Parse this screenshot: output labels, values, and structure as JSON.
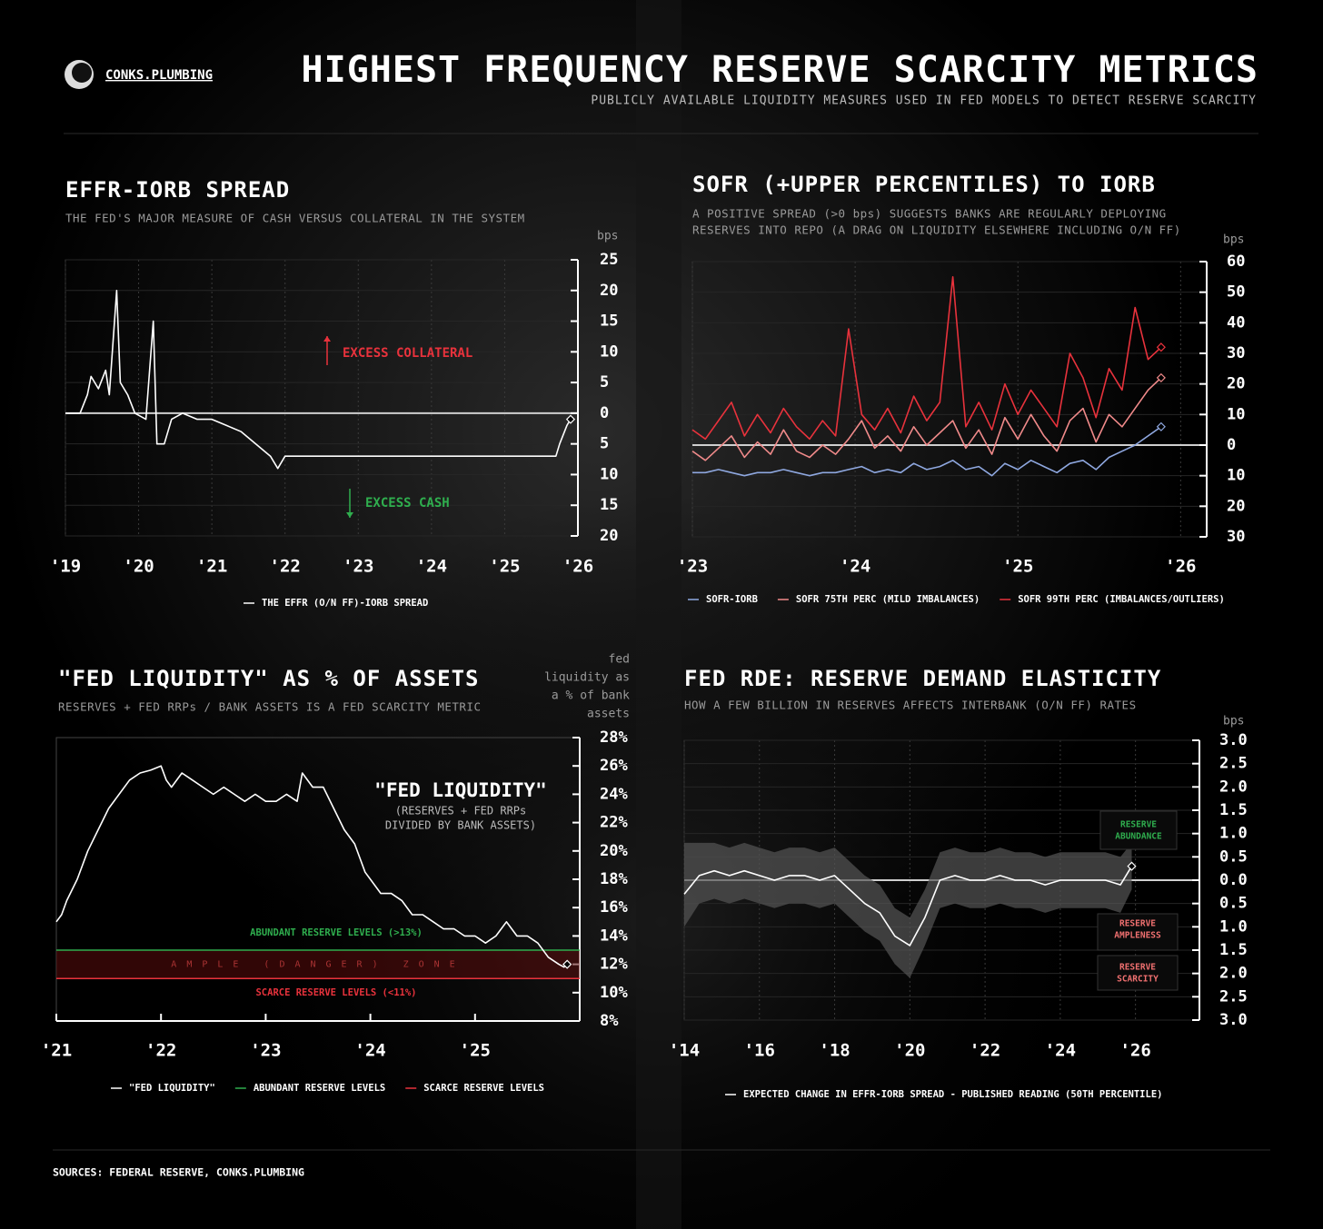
{
  "header": {
    "brand": "CONKS.PLUMBING",
    "title": "HIGHEST FREQUENCY RESERVE SCARCITY METRICS",
    "subtitle": "PUBLICLY AVAILABLE LIQUIDITY MEASURES USED IN FED MODELS TO DETECT RESERVE SCARCITY"
  },
  "chart_data": [
    {
      "type": "line",
      "title": "EFFR-IORB SPREAD",
      "subtitle": [
        "THE FED'S MAJOR MEASURE OF CASH VERSUS COLLATERAL IN THE SYSTEM"
      ],
      "y_label": [
        "bps"
      ],
      "x": [
        2019.0,
        2019.2,
        2019.3,
        2019.35,
        2019.45,
        2019.55,
        2019.6,
        2019.7,
        2019.75,
        2019.85,
        2019.95,
        2020.1,
        2020.2,
        2020.25,
        2020.35,
        2020.45,
        2020.6,
        2020.8,
        2021.0,
        2021.2,
        2021.4,
        2021.6,
        2021.8,
        2021.9,
        2022.0,
        2022.5,
        2023.0,
        2023.5,
        2024.0,
        2024.5,
        2025.0,
        2025.5,
        2025.7,
        2025.75,
        2025.85,
        2025.9
      ],
      "xlim": [
        2019,
        2026
      ],
      "xticks": [
        {
          "value": 2019,
          "label": "'19"
        },
        {
          "value": 2020,
          "label": "'20"
        },
        {
          "value": 2021,
          "label": "'21"
        },
        {
          "value": 2022,
          "label": "'22"
        },
        {
          "value": 2023,
          "label": "'23"
        },
        {
          "value": 2024,
          "label": "'24"
        },
        {
          "value": 2025,
          "label": "'25"
        },
        {
          "value": 2026,
          "label": "'26"
        }
      ],
      "ylim": [
        -20,
        25
      ],
      "yticks": [
        25,
        20,
        15,
        10,
        5,
        0,
        {
          "value": -5,
          "label": "5"
        },
        {
          "value": -10,
          "label": "10"
        },
        {
          "value": -15,
          "label": "15"
        },
        {
          "value": -20,
          "label": "20"
        }
      ],
      "grid": true,
      "series": [
        {
          "name": "THE EFFR (O/N FF)-IORB SPREAD",
          "color": "#ffffff",
          "values": [
            0,
            0,
            3,
            6,
            4,
            7,
            3,
            20,
            5,
            3,
            0,
            -1,
            15,
            -5,
            -5,
            -1,
            0,
            -1,
            -1,
            -2,
            -3,
            -5,
            -7,
            -9,
            -7,
            -7,
            -7,
            -7,
            -7,
            -7,
            -7,
            -7,
            -7,
            -5,
            -2,
            -1
          ]
        }
      ],
      "annotations": [
        {
          "lines": [
            "EXCESS COLLATERAL"
          ],
          "color": "#e8323c"
        },
        {
          "lines": [
            "EXCESS CASH"
          ],
          "color": "#2fae4e"
        }
      ]
    },
    {
      "type": "line",
      "title": "SOFR (+UPPER PERCENTILES) TO IORB",
      "subtitle": [
        "A POSITIVE SPREAD (>0 bps) SUGGESTS BANKS ARE REGULARLY DEPLOYING",
        "RESERVES INTO REPO (A DRAG ON LIQUIDITY ELSEWHERE INCLUDING O/N FF)"
      ],
      "y_label": [
        "bps"
      ],
      "x": [
        2023,
        2023.08,
        2023.16,
        2023.24,
        2023.32,
        2023.4,
        2023.48,
        2023.56,
        2023.64,
        2023.72,
        2023.8,
        2023.88,
        2023.96,
        2024.04,
        2024.12,
        2024.2,
        2024.28,
        2024.36,
        2024.44,
        2024.52,
        2024.6,
        2024.68,
        2024.76,
        2024.84,
        2024.92,
        2025,
        2025.08,
        2025.16,
        2025.24,
        2025.32,
        2025.4,
        2025.48,
        2025.56,
        2025.64,
        2025.72,
        2025.8,
        2025.88
      ],
      "xlim": [
        2023,
        2026.16
      ],
      "xticks": [
        {
          "value": 2023,
          "label": "'23"
        },
        {
          "value": 2024,
          "label": "'24"
        },
        {
          "value": 2025,
          "label": "'25"
        },
        {
          "value": 2026,
          "label": "'26"
        }
      ],
      "ylim": [
        -30,
        60
      ],
      "yticks": [
        60,
        50,
        40,
        30,
        20,
        10,
        0,
        {
          "value": -10,
          "label": "10"
        },
        {
          "value": -20,
          "label": "20"
        },
        {
          "value": -30,
          "label": "30"
        }
      ],
      "grid": true,
      "series": [
        {
          "name": "SOFR-IORB",
          "color": "#8fa8e0",
          "values": [
            -9,
            -9,
            -8,
            -9,
            -10,
            -9,
            -9,
            -8,
            -9,
            -10,
            -9,
            -9,
            -8,
            -7,
            -9,
            -8,
            -9,
            -6,
            -8,
            -7,
            -5,
            -8,
            -7,
            -10,
            -6,
            -8,
            -5,
            -7,
            -9,
            -6,
            -5,
            -8,
            -4,
            -2,
            0,
            3,
            6
          ]
        },
        {
          "name": "SOFR 75TH PERC (MILD IMBALANCES)",
          "color": "#f08a8a",
          "values": [
            -2,
            -5,
            -1,
            3,
            -4,
            1,
            -3,
            5,
            -2,
            -4,
            0,
            -3,
            2,
            8,
            -1,
            3,
            -2,
            6,
            0,
            4,
            8,
            -1,
            5,
            -3,
            9,
            2,
            10,
            3,
            -2,
            8,
            12,
            1,
            10,
            6,
            12,
            18,
            22
          ]
        },
        {
          "name": "SOFR 99TH PERC (IMBALANCES/OUTLIERS)",
          "color": "#e8323c",
          "values": [
            5,
            2,
            8,
            14,
            3,
            10,
            4,
            12,
            6,
            2,
            8,
            3,
            38,
            10,
            5,
            12,
            4,
            16,
            8,
            14,
            55,
            6,
            14,
            5,
            20,
            10,
            18,
            12,
            6,
            30,
            22,
            9,
            25,
            18,
            45,
            28,
            32
          ]
        }
      ],
      "annotations": []
    },
    {
      "type": "line",
      "title": "\"FED LIQUIDITY\" AS % OF ASSETS",
      "subtitle": [
        "RESERVES + FED RRPs / BANK ASSETS IS A FED SCARCITY METRIC"
      ],
      "y_label": [
        "fed",
        "liquidity as",
        "a % of bank",
        "assets"
      ],
      "x": [
        2021.0,
        2021.05,
        2021.1,
        2021.2,
        2021.3,
        2021.4,
        2021.5,
        2021.6,
        2021.7,
        2021.8,
        2021.9,
        2022.0,
        2022.05,
        2022.1,
        2022.2,
        2022.3,
        2022.4,
        2022.5,
        2022.6,
        2022.7,
        2022.8,
        2022.9,
        2023.0,
        2023.1,
        2023.2,
        2023.3,
        2023.35,
        2023.45,
        2023.55,
        2023.65,
        2023.75,
        2023.85,
        2023.95,
        2024.0,
        2024.1,
        2024.2,
        2024.3,
        2024.4,
        2024.5,
        2024.6,
        2024.7,
        2024.8,
        2024.9,
        2025.0,
        2025.1,
        2025.2,
        2025.3,
        2025.4,
        2025.5,
        2025.6,
        2025.7,
        2025.8,
        2025.85,
        2025.88
      ],
      "xlim": [
        2021,
        2026
      ],
      "xticks": [
        {
          "value": 2021,
          "label": "'21"
        },
        {
          "value": 2022,
          "label": "'22"
        },
        {
          "value": 2023,
          "label": "'23"
        },
        {
          "value": 2024,
          "label": "'24"
        },
        {
          "value": 2025,
          "label": "'25"
        }
      ],
      "ylim": [
        8,
        28
      ],
      "yticks": [
        {
          "value": 28,
          "label": "28%"
        },
        {
          "value": 26,
          "label": "26%"
        },
        {
          "value": 24,
          "label": "24%"
        },
        {
          "value": 22,
          "label": "22%"
        },
        {
          "value": 20,
          "label": "20%"
        },
        {
          "value": 18,
          "label": "18%"
        },
        {
          "value": 16,
          "label": "16%"
        },
        {
          "value": 14,
          "label": "14%"
        },
        {
          "value": 12,
          "label": "12%"
        },
        {
          "value": 10,
          "label": "10%"
        },
        {
          "value": 8,
          "label": "8%"
        }
      ],
      "grid": false,
      "series": [
        {
          "name": "\"FED LIQUIDITY\"",
          "color": "#ffffff",
          "values": [
            15,
            15.5,
            16.5,
            18,
            20,
            21.5,
            23,
            24,
            25,
            25.5,
            25.7,
            26,
            25,
            24.5,
            25.5,
            25,
            24.5,
            24,
            24.5,
            24,
            23.5,
            24,
            23.5,
            23.5,
            24,
            23.5,
            25.5,
            24.5,
            24.5,
            23,
            21.5,
            20.5,
            18.5,
            18,
            17,
            17,
            16.5,
            15.5,
            15.5,
            15,
            14.5,
            14.5,
            14,
            14,
            13.5,
            14,
            15,
            14,
            14,
            13.5,
            12.5,
            12,
            11.8,
            12
          ]
        }
      ],
      "thresholds": [
        {
          "name": "ABUNDANT RESERVE LEVELS",
          "label": "ABUNDANT RESERVE LEVELS (>13%)",
          "value": 13,
          "color": "#2fae4e"
        },
        {
          "name": "SCARCE RESERVE LEVELS",
          "label": "SCARCE RESERVE LEVELS (<11%)",
          "value": 11,
          "color": "#e8323c"
        }
      ],
      "zone_label": "AMPLE (DANGER) ZONE",
      "annotations": [
        {
          "lines": [
            "\"FED LIQUIDITY\""
          ],
          "color": "#ffffff"
        },
        {
          "lines": [
            "(RESERVES + FED RRPs",
            "DIVIDED BY BANK ASSETS)"
          ],
          "color": "#bbbbbb"
        }
      ]
    },
    {
      "type": "line",
      "title": "FED RDE: RESERVE DEMAND ELASTICITY",
      "subtitle": [
        "HOW A FEW BILLION IN RESERVES AFFECTS INTERBANK (O/N FF) RATES"
      ],
      "y_label": [
        "bps"
      ],
      "x": [
        2014,
        2014.4,
        2014.8,
        2015.2,
        2015.6,
        2016,
        2016.4,
        2016.8,
        2017.2,
        2017.6,
        2018,
        2018.4,
        2018.8,
        2019.2,
        2019.6,
        2020,
        2020.4,
        2020.8,
        2021.2,
        2021.6,
        2022,
        2022.4,
        2022.8,
        2023.2,
        2023.6,
        2024,
        2024.4,
        2024.8,
        2025.2,
        2025.6,
        2025.9
      ],
      "xlim": [
        2014,
        2027.7
      ],
      "xticks": [
        {
          "value": 2014,
          "label": "'14"
        },
        {
          "value": 2016,
          "label": "'16"
        },
        {
          "value": 2018,
          "label": "'18"
        },
        {
          "value": 2020,
          "label": "'20"
        },
        {
          "value": 2022,
          "label": "'22"
        },
        {
          "value": 2024,
          "label": "'24"
        },
        {
          "value": 2026,
          "label": "'26"
        }
      ],
      "ylim": [
        -3,
        3
      ],
      "yticks": [
        {
          "value": 3,
          "label": "3.0"
        },
        {
          "value": 2.5,
          "label": "2.5"
        },
        {
          "value": 2,
          "label": "2.0"
        },
        {
          "value": 1.5,
          "label": "1.5"
        },
        {
          "value": 1,
          "label": "1.0"
        },
        {
          "value": 0.5,
          "label": "0.5"
        },
        {
          "value": 0,
          "label": "0.0"
        },
        {
          "value": -0.5,
          "label": "0.5"
        },
        {
          "value": -1,
          "label": "1.0"
        },
        {
          "value": -1.5,
          "label": "1.5"
        },
        {
          "value": -2,
          "label": "2.0"
        },
        {
          "value": -2.5,
          "label": "2.5"
        },
        {
          "value": -3,
          "label": "3.0"
        }
      ],
      "grid": true,
      "band": {
        "color": "#555555",
        "upper": [
          0.8,
          0.8,
          0.8,
          0.7,
          0.8,
          0.7,
          0.6,
          0.7,
          0.7,
          0.6,
          0.7,
          0.4,
          0.1,
          -0.1,
          -0.6,
          -0.8,
          -0.2,
          0.6,
          0.7,
          0.6,
          0.6,
          0.7,
          0.6,
          0.6,
          0.5,
          0.6,
          0.6,
          0.6,
          0.6,
          0.5,
          0.8
        ],
        "lower": [
          -1.0,
          -0.5,
          -0.4,
          -0.5,
          -0.4,
          -0.5,
          -0.6,
          -0.5,
          -0.5,
          -0.6,
          -0.5,
          -0.8,
          -1.1,
          -1.3,
          -1.8,
          -2.1,
          -1.4,
          -0.6,
          -0.5,
          -0.6,
          -0.6,
          -0.5,
          -0.6,
          -0.6,
          -0.7,
          -0.6,
          -0.6,
          -0.6,
          -0.6,
          -0.7,
          -0.2
        ]
      },
      "series": [
        {
          "name": "EXPECTED CHANGE IN EFFR-IORB SPREAD - PUBLISHED READING (50TH PERCENTILE)",
          "color": "#ffffff",
          "values": [
            -0.3,
            0.1,
            0.2,
            0.1,
            0.2,
            0.1,
            0.0,
            0.1,
            0.1,
            0.0,
            0.1,
            -0.2,
            -0.5,
            -0.7,
            -1.2,
            -1.4,
            -0.8,
            0.0,
            0.1,
            0.0,
            0.0,
            0.1,
            0.0,
            0.0,
            -0.1,
            0.0,
            0.0,
            0.0,
            0.0,
            -0.1,
            0.3
          ]
        }
      ],
      "annotations": [
        {
          "lines": [
            "RESERVE",
            "ABUNDANCE"
          ],
          "color": "#2fae4e"
        },
        {
          "lines": [
            "RESERVE",
            "AMPLENESS"
          ],
          "color": "#f07070"
        },
        {
          "lines": [
            "RESERVE",
            "SCARCITY"
          ],
          "color": "#f07070"
        }
      ]
    }
  ],
  "footer": {
    "sources": "SOURCES: FEDERAL RESERVE, CONKS.PLUMBING"
  }
}
